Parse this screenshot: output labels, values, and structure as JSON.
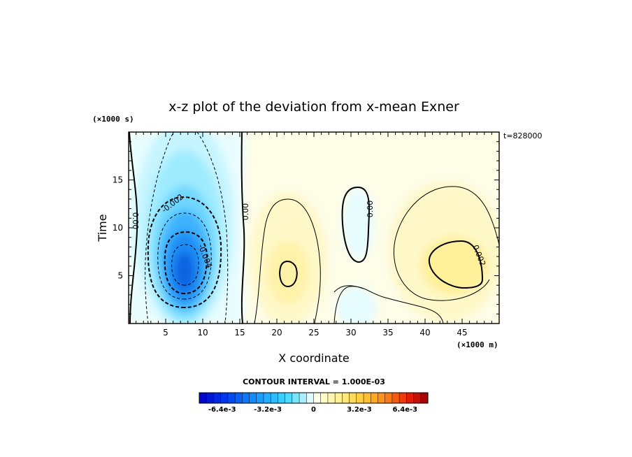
{
  "chart_data": {
    "type": "heatmap",
    "title": "x-z plot of the deviation from x-mean Exner",
    "xlabel": "X coordinate",
    "ylabel": "Time",
    "x_unit": "(×1000 m)",
    "y_unit": "(×1000 s)",
    "time_stamp": "t=828000",
    "contour_interval_text": "CONTOUR INTERVAL = 1.000E-03",
    "xlim": [
      0,
      50
    ],
    "ylim": [
      0,
      20
    ],
    "x_ticks": [
      5,
      10,
      15,
      20,
      25,
      30,
      35,
      40,
      45
    ],
    "y_ticks": [
      5,
      10,
      15
    ],
    "contour_labels": [
      "0.00",
      "-0.002",
      "-0.004",
      "0.00",
      "0.00",
      "0.002"
    ],
    "features": [
      {
        "kind": "min",
        "x": 7.5,
        "y": 5.5,
        "value": -0.0075
      },
      {
        "kind": "max",
        "x": 43.5,
        "y": 7,
        "value": 0.0025
      },
      {
        "kind": "max",
        "x": 21.5,
        "y": 5,
        "value": 0.002
      },
      {
        "kind": "min",
        "x": 31.5,
        "y": 11,
        "value": -0.0008
      }
    ],
    "colorbar": {
      "min": -0.008,
      "max": 0.008,
      "levels": 32,
      "tick_labels": [
        "-6.4e-3",
        "-3.2e-3",
        "0",
        "3.2e-3",
        "6.4e-3"
      ],
      "tick_values": [
        -0.0064,
        -0.0032,
        0,
        0.0032,
        0.0064
      ]
    }
  }
}
